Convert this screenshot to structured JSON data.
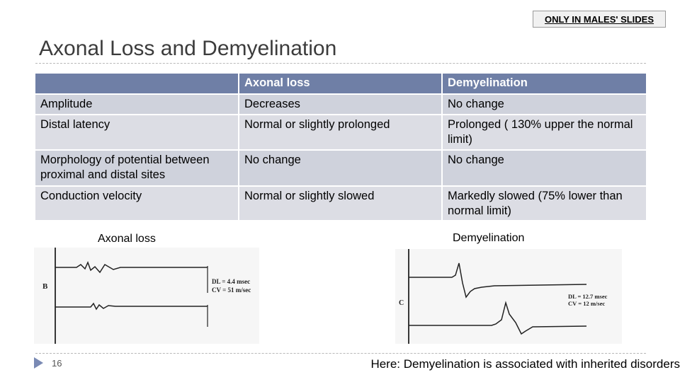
{
  "badge": "ONLY IN MALES' SLIDES",
  "title": "Axonal Loss and Demyelination",
  "table": {
    "headers": [
      "",
      "Axonal loss",
      "Demyelination"
    ],
    "rows": [
      [
        "Amplitude",
        "Decreases",
        "No change"
      ],
      [
        "Distal latency",
        "Normal or slightly prolonged",
        "Prolonged ( 130% upper the normal limit)"
      ],
      [
        "Morphology of potential between proximal and distal  sites",
        "No change",
        "No change"
      ],
      [
        "Conduction velocity",
        "Normal or slightly slowed",
        "Markedly slowed (75%  lower than normal limit)"
      ]
    ]
  },
  "figures": {
    "left": {
      "caption": "Axonal loss",
      "panel": "B",
      "dl": "DL = 4.4 msec",
      "cv": "CV = 51 m/sec"
    },
    "right": {
      "caption": "Demyelination",
      "panel": "C",
      "dl": "DL = 12.7 msec",
      "cv": "CV = 12 m/sec"
    }
  },
  "footer": "Here: Demyelination is associated with inherited disorders",
  "slide_number": "16",
  "colors": {
    "header_bg": "#6f7fa6",
    "row_a": "#dcdde4",
    "row_b": "#cfd2dc",
    "bullet": "#7a8ab4"
  }
}
